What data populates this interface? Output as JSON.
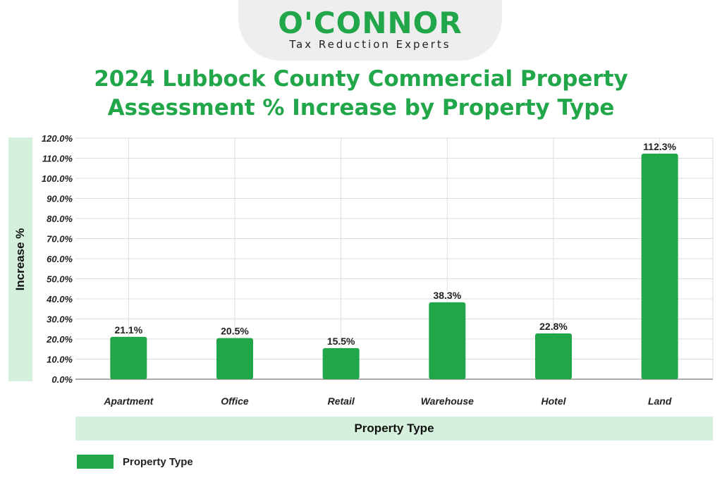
{
  "brand": {
    "name": "O'CONNOR",
    "tagline": "Tax Reduction Experts"
  },
  "title_line1": "2024 Lubbock County Commercial Property",
  "title_line2": "Assessment % Increase by Property Type",
  "colors": {
    "brand_green": "#22a64a",
    "label_band": "#d5f0dc"
  },
  "chart_data": {
    "type": "bar",
    "title": "2024 Lubbock County Commercial Property Assessment % Increase by Property Type",
    "xlabel": "Property Type",
    "ylabel": "Increase %",
    "categories": [
      "Apartment",
      "Office",
      "Retail",
      "Warehouse",
      "Hotel",
      "Land"
    ],
    "series": [
      {
        "name": "Property Type",
        "values": [
          21.1,
          20.5,
          15.5,
          38.3,
          22.8,
          112.3
        ],
        "labels": [
          "21.1%",
          "20.5%",
          "15.5%",
          "38.3%",
          "22.8%",
          "112.3%"
        ]
      }
    ],
    "ylim": [
      0,
      120
    ],
    "yticks": [
      "0.0%",
      "10.0%",
      "20.0%",
      "30.0%",
      "40.0%",
      "50.0%",
      "60.0%",
      "70.0%",
      "80.0%",
      "90.0%",
      "100.0%",
      "110.0%",
      "120.0%"
    ],
    "grid": true,
    "legend_position": "bottom-left"
  }
}
